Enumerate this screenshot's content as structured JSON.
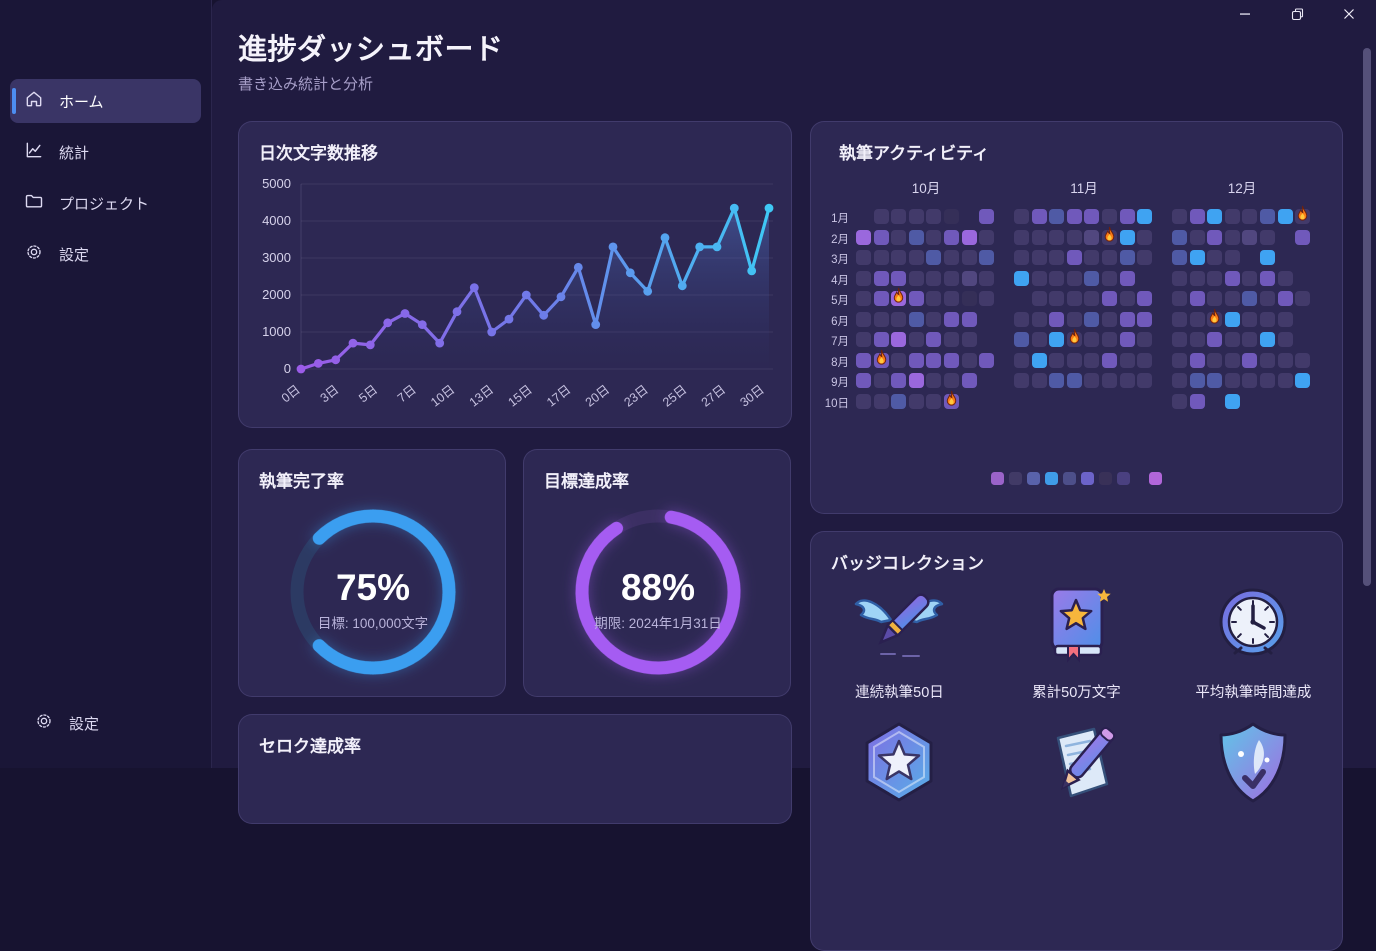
{
  "window": {
    "controls": [
      {
        "name": "minimize",
        "glyph": "–"
      },
      {
        "name": "maximize",
        "glyph": "restore"
      },
      {
        "name": "close",
        "glyph": "✕"
      }
    ]
  },
  "sidebar": {
    "items": [
      {
        "label": "ホーム",
        "icon": "home-icon",
        "active": true
      },
      {
        "label": "統計",
        "icon": "stats-icon",
        "active": false
      },
      {
        "label": "プロジェクト",
        "icon": "folder-icon",
        "active": false
      },
      {
        "label": "設定",
        "icon": "gear-icon",
        "active": false
      }
    ],
    "footer_item": {
      "label": "設定",
      "icon": "gear-icon"
    }
  },
  "header": {
    "title": "進捗ダッシュボード",
    "subtitle": "書き込み統計と分析"
  },
  "cards": {
    "daily": {
      "title": "日次文字数推移"
    },
    "activity": {
      "title": "執筆アクティビティ"
    },
    "completion": {
      "title": "執筆完了率",
      "percent": "75%",
      "sub": "目標: 100,000文字",
      "ring_color": "#3b9ef0",
      "track_color": "#2c3a63"
    },
    "goal": {
      "title": "目標達成率",
      "percent": "88%",
      "sub": "期限: 2024年1月31日",
      "ring_color": "#a55cf2",
      "track_color": "#3b2f63"
    },
    "badges": {
      "title": "バッジコレクション",
      "items": [
        {
          "icon": "winged-pen-icon",
          "label": "連続執筆50日"
        },
        {
          "icon": "book-star-icon",
          "label": "累計50万文字"
        },
        {
          "icon": "clock-icon",
          "label": "平均執筆時間達成"
        },
        {
          "icon": "hex-star-icon",
          "label": ""
        },
        {
          "icon": "pencil-paper-icon",
          "label": ""
        },
        {
          "icon": "shield-feather-icon",
          "label": ""
        }
      ]
    },
    "bottom": {
      "title": "セロク達成率"
    }
  },
  "chart_data": [
    {
      "type": "line",
      "title": "日次文字数推移",
      "xlabel": "",
      "ylabel": "",
      "ylim": [
        0,
        5000
      ],
      "yticks": [
        0,
        1000,
        2000,
        3000,
        4000,
        5000
      ],
      "x_tick_labels": [
        "0日",
        "3日",
        "5日",
        "7日",
        "10日",
        "13日",
        "15日",
        "17日",
        "20日",
        "23日",
        "25日",
        "27日",
        "30日"
      ],
      "values": [
        0,
        150,
        250,
        700,
        650,
        1250,
        1500,
        1200,
        700,
        1550,
        2200,
        1000,
        1350,
        2000,
        1450,
        1950,
        2750,
        1200,
        3300,
        2600,
        2100,
        3550,
        2250,
        3300,
        3300,
        4350,
        2650,
        4350
      ],
      "grid": true,
      "line_gradient": [
        "#9b5ce8",
        "#6f7ae8",
        "#3fc8f5"
      ],
      "area_fill": true
    },
    {
      "type": "heatmap",
      "title": "執筆アクティビティ",
      "col_groups": [
        "10月",
        "11月",
        "12月"
      ],
      "row_labels": [
        "1月",
        "2月",
        "3月",
        "4月",
        "5月",
        "6月",
        "7月",
        "8月",
        "9月",
        "10日"
      ],
      "palette": {
        "a": "#352f58",
        "b": "#423a6a",
        "c": "#51477f",
        "d": "#7059bb",
        "e": "#9a68dd",
        "f": "#4f5aa5",
        "g": "#3fa3f2"
      },
      "grids": [
        [
          ".bbbba.d",
          "edbfbdeb",
          "bbbbfbbf",
          "bddbbbcb",
          "bdedbbab",
          "bbbfbdd.",
          "bdebdbb.",
          "ddbdddbd",
          "dbdebbd.",
          "bbfbbd.."
        ],
        [
          "bdfddbdg",
          "bbbbcbgb",
          "bbbdbbfb",
          "gbbbfbd.",
          ".bbbbdbd",
          "bbdbfbdd",
          "fbgbbbdb",
          "bgbbbdbb",
          "bbffbbbb",
          "........"
        ],
        [
          "bdgbbfgb",
          "fbdbcb.d",
          "fgbb.g..",
          "bbbdbdb.",
          "bdbbfbdb",
          "bbbgbbb.",
          "bbdbbgb.",
          "bdbbdbbb",
          "bffbbbbg",
          "bd.g...."
        ]
      ],
      "fires": [
        [
          0,
          4,
          2
        ],
        [
          0,
          7,
          1
        ],
        [
          0,
          9,
          5
        ],
        [
          1,
          1,
          5
        ],
        [
          1,
          6,
          3
        ],
        [
          2,
          0,
          7
        ],
        [
          2,
          5,
          2
        ]
      ],
      "legend": [
        "#9a63c9",
        "#413a66",
        "#5962aa",
        "#3f9ce8",
        "#4d4f8a",
        "#6c63c9",
        "#393158",
        "#4a4080"
      ],
      "legend_extra": "#b166d9"
    },
    {
      "type": "donut",
      "title": "執筆完了率",
      "value": 75,
      "label": "75%",
      "sublabel": "目標: 100,000文字",
      "color": "#3b9ef0"
    },
    {
      "type": "donut",
      "title": "目標達成率",
      "value": 88,
      "label": "88%",
      "sublabel": "期限: 2024年1月31日",
      "color": "#a55cf2"
    }
  ]
}
